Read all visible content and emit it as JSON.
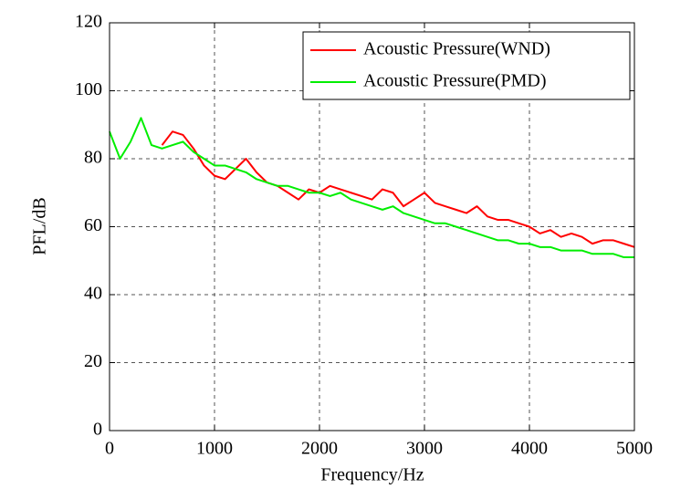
{
  "chart_data": {
    "type": "line",
    "xlabel": "Frequency/Hz",
    "ylabel": "PFL/dB",
    "x": [
      0,
      100,
      200,
      300,
      400,
      500,
      600,
      700,
      800,
      900,
      1000,
      1100,
      1200,
      1300,
      1400,
      1500,
      1600,
      1700,
      1800,
      1900,
      2000,
      2100,
      2200,
      2300,
      2400,
      2500,
      2600,
      2700,
      2800,
      2900,
      3000,
      3100,
      3200,
      3300,
      3400,
      3500,
      3600,
      3700,
      3800,
      3900,
      4000,
      4100,
      4200,
      4300,
      4400,
      4500,
      4600,
      4700,
      4800,
      4900,
      5000
    ],
    "series": [
      {
        "name": "Acoustic Pressure(WND)",
        "color": "#ff0000",
        "values": [
          null,
          null,
          null,
          null,
          null,
          84,
          88,
          87,
          83,
          78,
          75,
          74,
          77,
          80,
          76,
          73,
          72,
          70,
          68,
          71,
          70,
          72,
          71,
          70,
          69,
          68,
          71,
          70,
          66,
          68,
          70,
          67,
          66,
          65,
          64,
          66,
          63,
          62,
          62,
          61,
          60,
          58,
          59,
          57,
          58,
          57,
          55,
          56,
          56,
          55,
          54
        ]
      },
      {
        "name": "Acoustic Pressure(PMD)",
        "color": "#00ee00",
        "values": [
          88,
          80,
          85,
          92,
          84,
          83,
          84,
          85,
          82,
          80,
          78,
          78,
          77,
          76,
          74,
          73,
          72,
          72,
          71,
          70,
          70,
          69,
          70,
          68,
          67,
          66,
          65,
          66,
          64,
          63,
          62,
          61,
          61,
          60,
          59,
          58,
          57,
          56,
          56,
          55,
          55,
          54,
          54,
          53,
          53,
          53,
          52,
          52,
          52,
          51,
          51
        ]
      }
    ],
    "xlim": [
      0,
      5000
    ],
    "xticks": [
      0,
      1000,
      2000,
      3000,
      4000,
      5000
    ],
    "ylim": [
      0,
      120
    ],
    "yticks": [
      0,
      20,
      40,
      60,
      80,
      100,
      120
    ],
    "grid": true,
    "legend": "upper right"
  }
}
